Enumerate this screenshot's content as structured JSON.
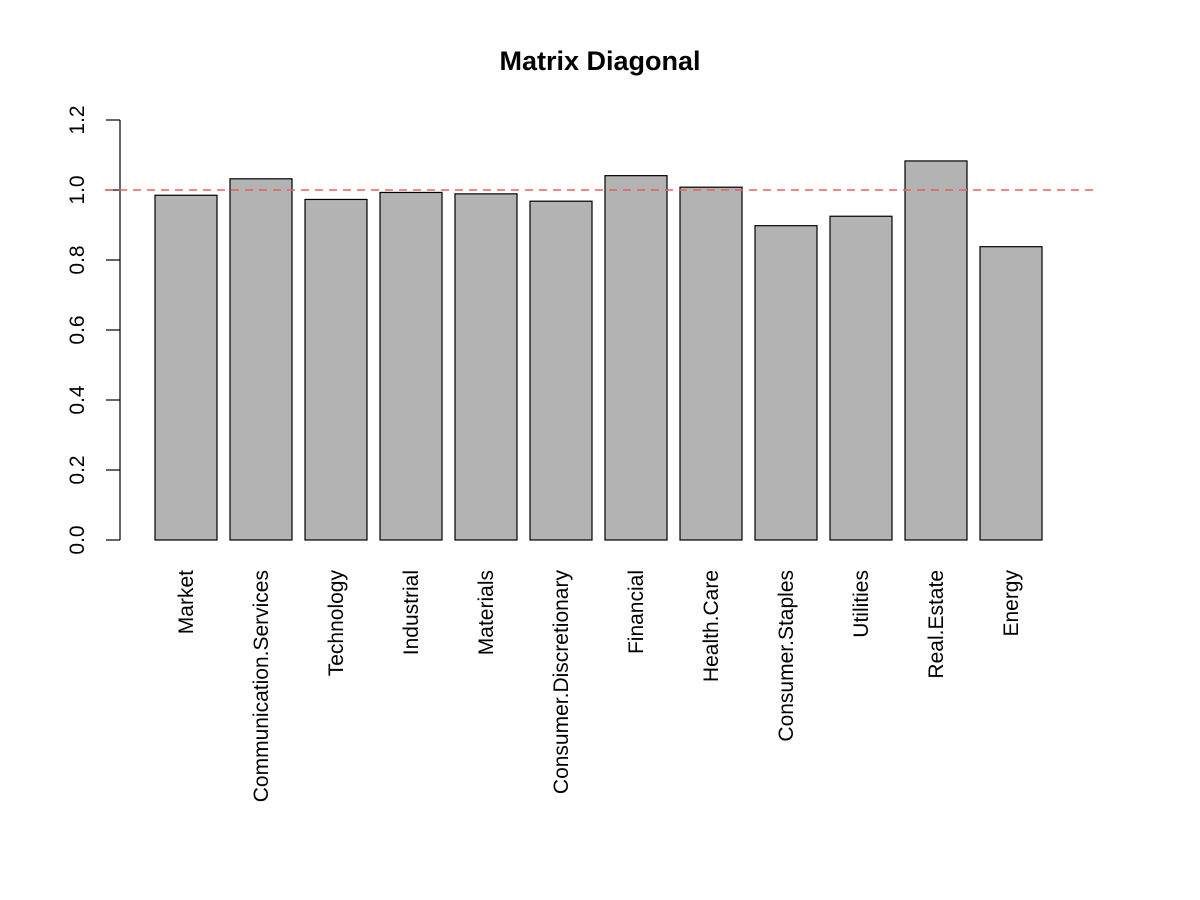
{
  "chart_data": {
    "type": "bar",
    "title": "Matrix Diagonal",
    "xlabel": "",
    "ylabel": "",
    "categories": [
      "Market",
      "Communication.Services",
      "Technology",
      "Industrial",
      "Materials",
      "Consumer.Discretionary",
      "Financial",
      "Health.Care",
      "Consumer.Staples",
      "Utilities",
      "Real.Estate",
      "Energy"
    ],
    "values": [
      0.985,
      1.032,
      0.973,
      0.993,
      0.989,
      0.968,
      1.041,
      1.008,
      0.898,
      0.925,
      1.083,
      0.838
    ],
    "ylim": [
      0,
      1.2
    ],
    "yticks": [
      "0.0",
      "0.2",
      "0.4",
      "0.6",
      "0.8",
      "1.0",
      "1.2"
    ],
    "reference_line": {
      "y": 1.0,
      "style": "dashed",
      "color": "#E8635A"
    },
    "bar_color": "#B3B3B3",
    "grid": false,
    "legend": "none"
  }
}
